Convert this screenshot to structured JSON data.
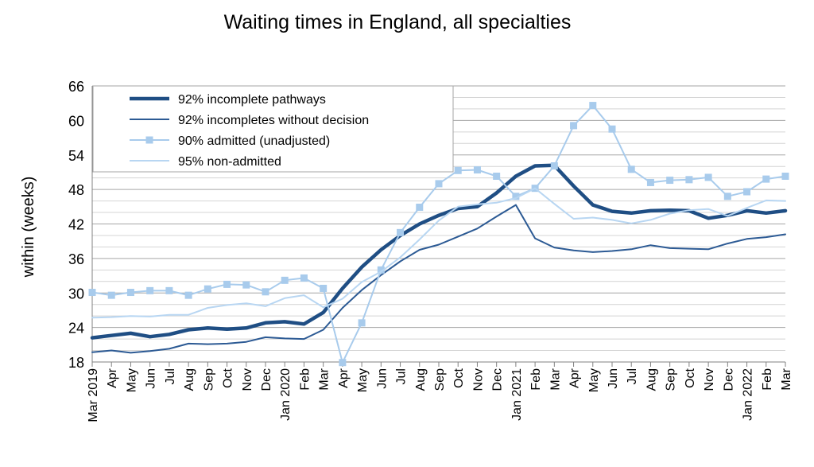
{
  "chart_data": {
    "type": "line",
    "title": "Waiting times in England, all specialties",
    "ylabel": "within  (weeks)",
    "ylim": [
      18,
      66
    ],
    "yticks": [
      18,
      24,
      30,
      36,
      42,
      48,
      54,
      60,
      66
    ],
    "grid": true,
    "legend_position": "top-left",
    "x": [
      "Mar",
      "Apr",
      "May",
      "Jun",
      "Jul",
      "Aug",
      "Sep",
      "Oct",
      "Nov",
      "Dec",
      "Jan",
      "Feb",
      "Mar",
      "Apr",
      "May",
      "Jun",
      "Jul",
      "Aug",
      "Sep",
      "Oct",
      "Nov",
      "Dec",
      "Jan",
      "Feb",
      "Mar",
      "Apr",
      "May",
      "Jun",
      "Jul",
      "Aug",
      "Sep",
      "Oct",
      "Nov",
      "Dec",
      "Jan",
      "Feb",
      "Mar"
    ],
    "year_labels": [
      {
        "index": 0,
        "label": "2019"
      },
      {
        "index": 10,
        "label": "2020"
      },
      {
        "index": 22,
        "label": "2021"
      },
      {
        "index": 34,
        "label": "2022"
      }
    ],
    "series": [
      {
        "name": "92% incomplete pathways",
        "color": "#1f4e84",
        "width": 4.5,
        "marker": false,
        "values": [
          22.2,
          22.6,
          23.0,
          22.4,
          22.8,
          23.6,
          23.9,
          23.7,
          23.9,
          24.8,
          25.0,
          24.6,
          26.6,
          30.8,
          34.5,
          37.5,
          40.0,
          42.0,
          43.5,
          44.7,
          45.0,
          47.4,
          50.3,
          52.1,
          52.2,
          48.6,
          45.3,
          44.2,
          43.9,
          44.3,
          44.4,
          44.3,
          43.0,
          43.5,
          44.3,
          43.9,
          44.3
        ]
      },
      {
        "name": "92% incompletes without decision",
        "color": "#2c5a94",
        "width": 2,
        "marker": false,
        "values": [
          19.7,
          20.0,
          19.6,
          19.9,
          20.3,
          21.2,
          21.1,
          21.2,
          21.5,
          22.3,
          22.1,
          22.0,
          23.6,
          27.4,
          30.5,
          33.1,
          35.5,
          37.5,
          38.4,
          39.8,
          41.2,
          43.3,
          45.3,
          39.5,
          37.9,
          37.4,
          37.1,
          37.3,
          37.6,
          38.3,
          37.8,
          37.7,
          37.6,
          38.6,
          39.4,
          39.7,
          40.2
        ]
      },
      {
        "name": "90% admitted (unadjusted)",
        "color": "#a8cbec",
        "width": 2,
        "marker": true,
        "values": [
          30.1,
          29.6,
          30.1,
          30.4,
          30.4,
          29.6,
          30.7,
          31.5,
          31.4,
          30.2,
          32.2,
          32.6,
          30.8,
          17.9,
          24.8,
          34.0,
          40.5,
          44.9,
          49.0,
          51.3,
          51.4,
          50.3,
          46.8,
          48.2,
          52.1,
          59.1,
          62.6,
          58.5,
          51.5,
          49.2,
          49.6,
          49.7,
          50.1,
          46.8,
          47.6,
          49.8,
          50.3
        ]
      },
      {
        "name": "95% non-admitted",
        "color": "#b8d6f2",
        "width": 2,
        "marker": false,
        "values": [
          25.7,
          25.8,
          26.0,
          25.9,
          26.2,
          26.2,
          27.4,
          27.9,
          28.2,
          27.7,
          29.1,
          29.6,
          27.5,
          29.0,
          31.9,
          33.7,
          36.2,
          39.3,
          42.6,
          45.0,
          45.4,
          45.7,
          46.5,
          48.2,
          45.5,
          42.9,
          43.1,
          42.7,
          42.1,
          42.7,
          43.8,
          44.4,
          44.6,
          43.4,
          44.8,
          46.1,
          46.0
        ]
      }
    ]
  }
}
